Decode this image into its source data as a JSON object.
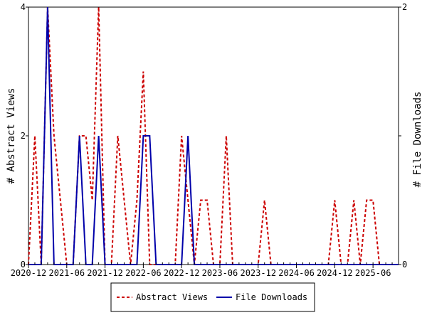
{
  "chart_data": {
    "type": "line",
    "title": "",
    "xlabel": "",
    "ylabel_left": "# Abstract Views",
    "ylabel_right": "# File Downloads",
    "ylim_left": [
      0,
      4
    ],
    "ylim_right": [
      0,
      2
    ],
    "yticks_left": [
      "0",
      "2",
      "4"
    ],
    "yticks_right": [
      "0",
      "1",
      "2"
    ],
    "xlim": [
      "2020-12",
      "2025-10"
    ],
    "xtick_labels": [
      "2020-12",
      "2021-06",
      "2021-12",
      "2022-06",
      "2022-12",
      "2023-06",
      "2023-12",
      "2024-06",
      "2024-12",
      "2025-06"
    ],
    "grid": false,
    "legend_position": "bottom",
    "categories": [
      "2020-12",
      "2021-01",
      "2021-02",
      "2021-03",
      "2021-04",
      "2021-05",
      "2021-06",
      "2021-07",
      "2021-08",
      "2021-09",
      "2021-10",
      "2021-11",
      "2021-12",
      "2022-01",
      "2022-02",
      "2022-03",
      "2022-04",
      "2022-05",
      "2022-06",
      "2022-07",
      "2022-08",
      "2022-09",
      "2022-10",
      "2022-11",
      "2022-12",
      "2023-01",
      "2023-02",
      "2023-03",
      "2023-04",
      "2023-05",
      "2023-06",
      "2023-07",
      "2023-08",
      "2023-09",
      "2023-10",
      "2023-11",
      "2023-12",
      "2024-01",
      "2024-02",
      "2024-03",
      "2024-04",
      "2024-05",
      "2024-06",
      "2024-07",
      "2024-08",
      "2024-09",
      "2024-10",
      "2024-11",
      "2024-12",
      "2025-01",
      "2025-02",
      "2025-03",
      "2025-04",
      "2025-05",
      "2025-06",
      "2025-07",
      "2025-08",
      "2025-09",
      "2025-10"
    ],
    "series": [
      {
        "name": "Abstract Views",
        "axis": "left",
        "color": "#cc0000",
        "dash": "dashed",
        "values": [
          0,
          2,
          0,
          4,
          2,
          1,
          0,
          0,
          2,
          2,
          1,
          4,
          0,
          0,
          2,
          1,
          0,
          1,
          3,
          0,
          0,
          0,
          0,
          0,
          2,
          1,
          0,
          1,
          1,
          0,
          0,
          2,
          0,
          0,
          0,
          0,
          0,
          1,
          0,
          0,
          0,
          0,
          0,
          0,
          0,
          0,
          0,
          0,
          1,
          0,
          0,
          1,
          0,
          1,
          1,
          0,
          0,
          0,
          0
        ]
      },
      {
        "name": "File Downloads",
        "axis": "right",
        "color": "#0000aa",
        "dash": "solid",
        "values": [
          0,
          0,
          0,
          2,
          0,
          0,
          0,
          0,
          1,
          0,
          0,
          1,
          0,
          0,
          0,
          0,
          0,
          0,
          1,
          1,
          0,
          0,
          0,
          0,
          0,
          1,
          0,
          0,
          0,
          0,
          0,
          0,
          0,
          0,
          0,
          0,
          0,
          0,
          0,
          0,
          0,
          0,
          0,
          0,
          0,
          0,
          0,
          0,
          0,
          0,
          0,
          0,
          0,
          0,
          0,
          0,
          0,
          0,
          0
        ]
      }
    ]
  }
}
